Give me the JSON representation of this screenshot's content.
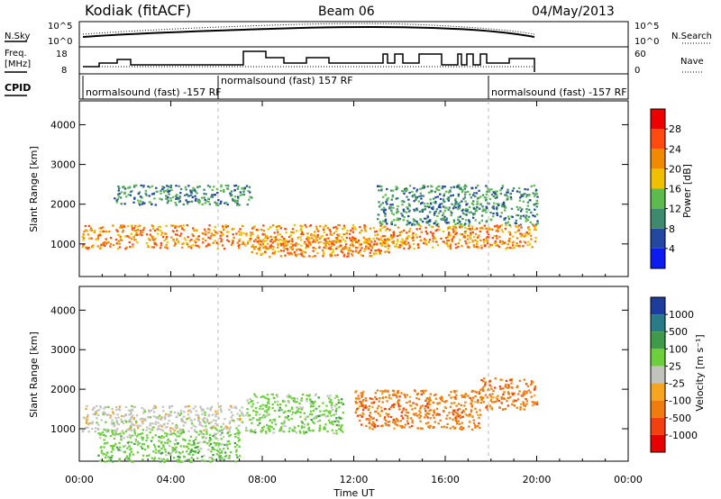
{
  "header": {
    "station": "Kodiak (fitACF)",
    "beam": "Beam 06",
    "date": "04/May/2013"
  },
  "nsky_panel": {
    "left_label": "N.Sky",
    "right_label": "N.Search",
    "tick_top": "10^5",
    "tick_bottom": "10^0"
  },
  "freq_panel": {
    "left_label_line1": "Freq.",
    "left_label_line2": "[MHz]",
    "left_ticks": [
      "18",
      "8"
    ],
    "right_label": "Nave",
    "right_ticks": [
      "60",
      "0"
    ]
  },
  "cpid_panel": {
    "label": "CPID",
    "segments": [
      {
        "text": "normalsound (fast) -157 RF",
        "start_hour": 0
      },
      {
        "text": "normalsound (fast) 157 RF",
        "start_hour": 6
      },
      {
        "text": "normalsound (fast) -157 RF",
        "start_hour": 18
      }
    ]
  },
  "power_panel": {
    "ylabel": "Slant Range [km]",
    "yticks": [
      "1000",
      "2000",
      "3000",
      "4000"
    ],
    "colorbar_label": "Power [dB]",
    "colorbar_ticks": [
      "4",
      "8",
      "12",
      "16",
      "20",
      "24",
      "28"
    ]
  },
  "velocity_panel": {
    "ylabel": "Slant Range [km]",
    "yticks": [
      "1000",
      "2000",
      "3000",
      "4000"
    ],
    "colorbar_label": "Velocity [m s⁻¹]",
    "colorbar_ticks": [
      "1000",
      "500",
      "100",
      "25",
      "-25",
      "-100",
      "-500",
      "-1000"
    ]
  },
  "xaxis": {
    "label": "Time UT",
    "ticks": [
      "00:00",
      "04:00",
      "08:00",
      "12:00",
      "16:00",
      "20:00",
      "00:00"
    ]
  },
  "colors": {
    "power": [
      "#0b1cf0",
      "#24479f",
      "#3f8a6e",
      "#5cba4e",
      "#f0c000",
      "#f08a00",
      "#ff4b10",
      "#ee0000"
    ],
    "velocity": [
      "#1e3d9b",
      "#2a7b88",
      "#3f9a4a",
      "#6ecf3c",
      "#c3c3bd",
      "#f5a520",
      "#f07c10",
      "#f24010",
      "#e80000"
    ]
  },
  "chart_data": [
    {
      "type": "heatmap",
      "title": "Power",
      "x_range_hours": [
        0,
        24
      ],
      "y_range_km": [
        180,
        4600
      ],
      "color_scale_db": [
        0,
        32
      ],
      "regions": [
        {
          "t0": 0.1,
          "t1": 20.0,
          "r0": 900,
          "r1": 1500,
          "level_db": 22
        },
        {
          "t0": 1.5,
          "t1": 7.5,
          "r0": 2000,
          "r1": 2500,
          "level_db": 10
        },
        {
          "t0": 13.0,
          "t1": 20.0,
          "r0": 1500,
          "r1": 2500,
          "level_db": 12
        },
        {
          "t0": 7.5,
          "t1": 13.5,
          "r0": 700,
          "r1": 1200,
          "level_db": 24
        }
      ]
    },
    {
      "type": "heatmap",
      "title": "Velocity",
      "x_range_hours": [
        0,
        24
      ],
      "y_range_km": [
        180,
        4600
      ],
      "color_scale_ms": [
        -1000,
        1000
      ],
      "regions": [
        {
          "t0": 0.1,
          "t1": 7.3,
          "r0": 950,
          "r1": 1600,
          "velocity_ms": 0
        },
        {
          "t0": 0.8,
          "t1": 7.0,
          "r0": 180,
          "r1": 1000,
          "velocity_ms": 60
        },
        {
          "t0": 7.3,
          "t1": 11.5,
          "r0": 900,
          "r1": 1900,
          "velocity_ms": 80
        },
        {
          "t0": 12.0,
          "t1": 17.5,
          "r0": 1000,
          "r1": 2000,
          "velocity_ms": -110
        },
        {
          "t0": 17.5,
          "t1": 20.0,
          "r0": 1500,
          "r1": 2300,
          "velocity_ms": -150
        }
      ]
    }
  ]
}
